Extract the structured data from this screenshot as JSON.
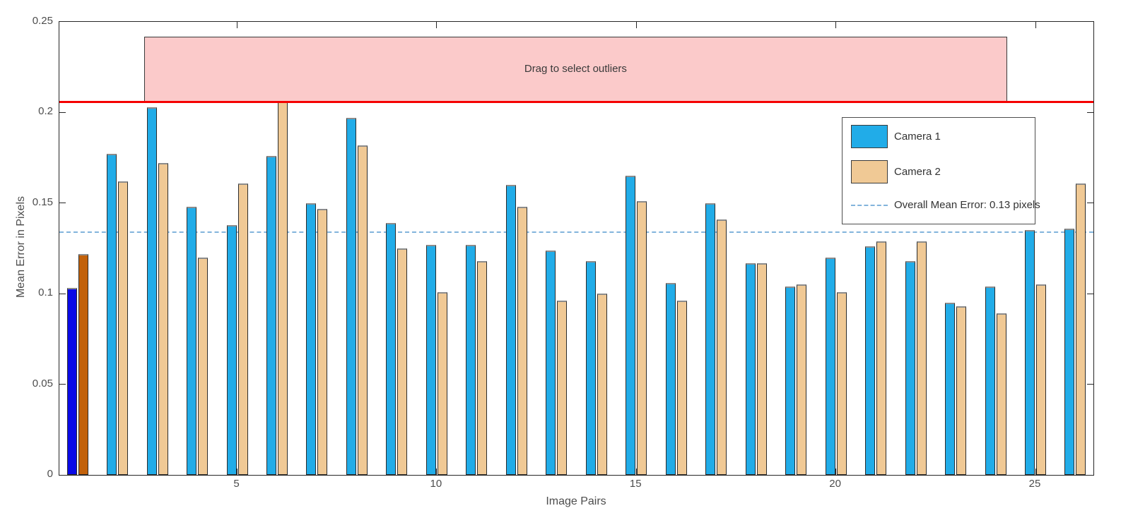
{
  "chart_data": {
    "type": "bar",
    "title": "",
    "xlabel": "Image Pairs",
    "ylabel": "Mean Error in Pixels",
    "ylim": [
      0,
      0.25
    ],
    "yticks": [
      0,
      0.05,
      0.1,
      0.15,
      0.2,
      0.25
    ],
    "ytick_labels": [
      "0",
      "0.05",
      "0.1",
      "0.15",
      "0.2",
      "0.25"
    ],
    "xticks": [
      5,
      10,
      15,
      20,
      25
    ],
    "xtick_labels": [
      "5",
      "10",
      "15",
      "20",
      "25"
    ],
    "grid": false,
    "categories": [
      1,
      2,
      3,
      4,
      5,
      6,
      7,
      8,
      9,
      10,
      11,
      12,
      13,
      14,
      15,
      16,
      17,
      18,
      19,
      20,
      21,
      22,
      23,
      24,
      25,
      26
    ],
    "series": [
      {
        "name": "Camera 1",
        "color": "#21ace8",
        "selected_color": "#0a0ae6",
        "values": [
          0.103,
          0.177,
          0.203,
          0.148,
          0.138,
          0.176,
          0.15,
          0.197,
          0.139,
          0.127,
          0.127,
          0.16,
          0.124,
          0.118,
          0.165,
          0.106,
          0.15,
          0.117,
          0.104,
          0.12,
          0.126,
          0.118,
          0.095,
          0.104,
          0.135,
          0.136
        ]
      },
      {
        "name": "Camera 2",
        "color": "#f0c995",
        "selected_color": "#c2610a",
        "values": [
          0.122,
          0.162,
          0.172,
          0.12,
          0.161,
          0.207,
          0.147,
          0.182,
          0.125,
          0.101,
          0.118,
          0.148,
          0.096,
          0.1,
          0.151,
          0.096,
          0.141,
          0.117,
          0.105,
          0.101,
          0.129,
          0.129,
          0.093,
          0.089,
          0.105,
          0.161
        ]
      }
    ],
    "selected_pairs": [
      1
    ],
    "overall_mean_line": {
      "value": 0.134,
      "label": "Overall Mean Error: 0.13 pixels",
      "color": "#82b4dc",
      "style": "dashed"
    },
    "threshold_line": {
      "value": 0.206,
      "color": "#f50000"
    },
    "outlier_region": {
      "label": "Drag to select outliers",
      "x_start_pair": 2.67,
      "x_end_pair": 24.29,
      "y_bottom": 0.206,
      "y_top": 0.242,
      "fill": "#fbcaca"
    },
    "legend": {
      "position": "upper right",
      "entries": [
        "Camera 1",
        "Camera 2",
        "Overall Mean Error: 0.13 pixels"
      ]
    }
  }
}
